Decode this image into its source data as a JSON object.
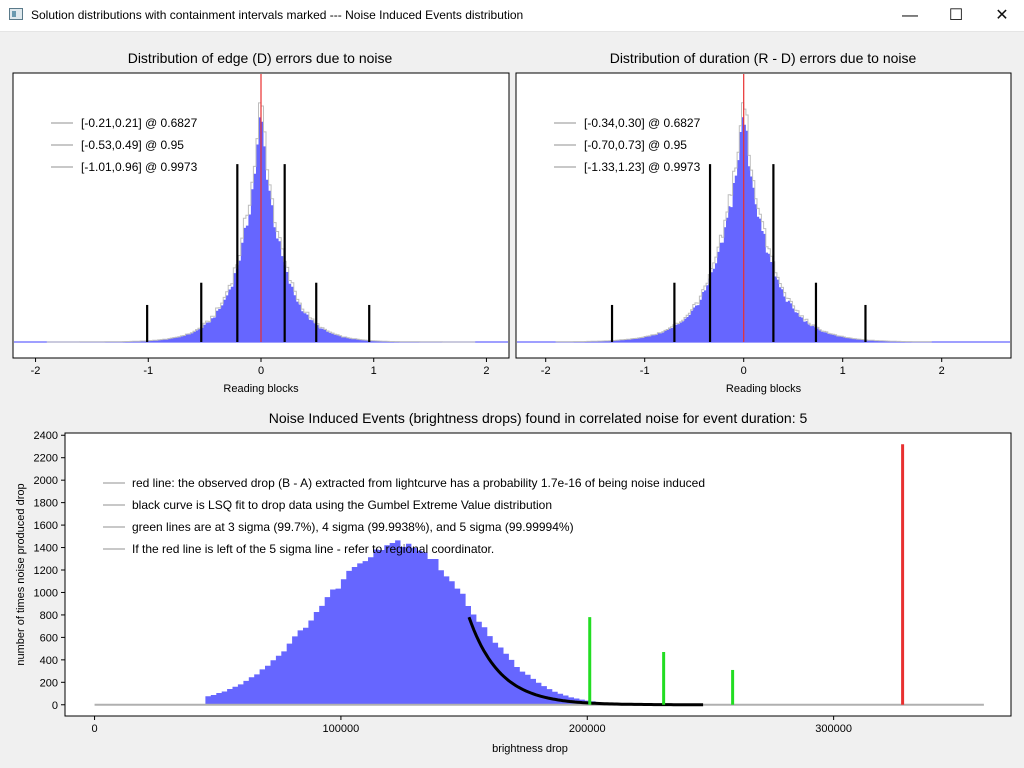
{
  "window": {
    "title": "Solution distributions with containment intervals marked --- Noise Induced Events distribution",
    "buttons": {
      "minimize": "—",
      "maximize": "☐",
      "close": "✕"
    }
  },
  "colors": {
    "hist": "#6666ff",
    "hist_edge": "#bdbdbd",
    "red": "#e83030",
    "green": "#22dd22",
    "black": "#000000",
    "legend_line": "#c8c8c8"
  },
  "chart_data": [
    {
      "id": "edge",
      "type": "bar",
      "title": "Distribution of edge (D) errors due to noise",
      "xlabel": "Reading blocks",
      "ylabel": "",
      "xlim": [
        -2.2,
        2.2
      ],
      "xticks": [
        -2,
        -1,
        0,
        1,
        2
      ],
      "center": 0.0,
      "peak_rel": 0.93,
      "shape": {
        "type": "laplace",
        "scale": 0.19
      },
      "intervals": [
        {
          "label": "[-0.21,0.21] @ 0.6827",
          "lo": -0.21,
          "hi": 0.21,
          "h": 0.72
        },
        {
          "label": "[-0.53,0.49] @ 0.95",
          "lo": -0.53,
          "hi": 0.49,
          "h": 0.24
        },
        {
          "label": "[-1.01,0.96] @ 0.9973",
          "lo": -1.01,
          "hi": 0.96,
          "h": 0.15
        }
      ]
    },
    {
      "id": "duration",
      "type": "bar",
      "title": "Distribution of duration (R - D) errors due to noise",
      "xlabel": "Reading blocks",
      "ylabel": "",
      "xlim": [
        -2.3,
        2.7
      ],
      "xticks": [
        -2,
        -1,
        0,
        1,
        2
      ],
      "center": 0.0,
      "peak_rel": 0.93,
      "shape": {
        "type": "laplace",
        "scale": 0.26
      },
      "intervals": [
        {
          "label": "[-0.34,0.30] @ 0.6827",
          "lo": -0.34,
          "hi": 0.3,
          "h": 0.72
        },
        {
          "label": "[-0.70,0.73] @ 0.95",
          "lo": -0.7,
          "hi": 0.73,
          "h": 0.24
        },
        {
          "label": "[-1.33,1.23] @ 0.9973",
          "lo": -1.33,
          "hi": 1.23,
          "h": 0.15
        }
      ]
    },
    {
      "id": "nie",
      "type": "bar",
      "title": "Noise Induced Events (brightness drops) found in correlated noise for event duration: 5",
      "xlabel": "brightness drop",
      "ylabel": "number of times noise produced drop",
      "xlim": [
        -12000,
        372000
      ],
      "ylim": [
        -100,
        2420
      ],
      "xticks": [
        0,
        100000,
        200000,
        300000
      ],
      "yticks": [
        0,
        200,
        400,
        600,
        800,
        1000,
        1200,
        1400,
        1600,
        1800,
        2000,
        2200,
        2400
      ],
      "hist": {
        "mode": 123000,
        "sigma_left": 32000,
        "sigma_right": 28000,
        "peak": 1450,
        "min": 45000,
        "max": 247000
      },
      "fit": {
        "from": 152000,
        "to": 247000,
        "start_value": 780,
        "decay": 12500
      },
      "green_lines": [
        {
          "x": 201000,
          "y": 780
        },
        {
          "x": 231000,
          "y": 470
        },
        {
          "x": 259000,
          "y": 310
        }
      ],
      "red_line": {
        "x": 328000,
        "y": 2320
      },
      "baseline_to": 361000,
      "legend": [
        "red line: the observed drop (B - A) extracted from lightcurve has a probability 1.7e-16 of being noise induced",
        "black curve is LSQ fit to drop data using the Gumbel Extreme Value distribution",
        "green lines are at 3 sigma (99.7%), 4 sigma (99.9938%), and 5 sigma (99.99994%)",
        "If the red line is left of the 5 sigma line - refer to regional coordinator."
      ]
    }
  ]
}
